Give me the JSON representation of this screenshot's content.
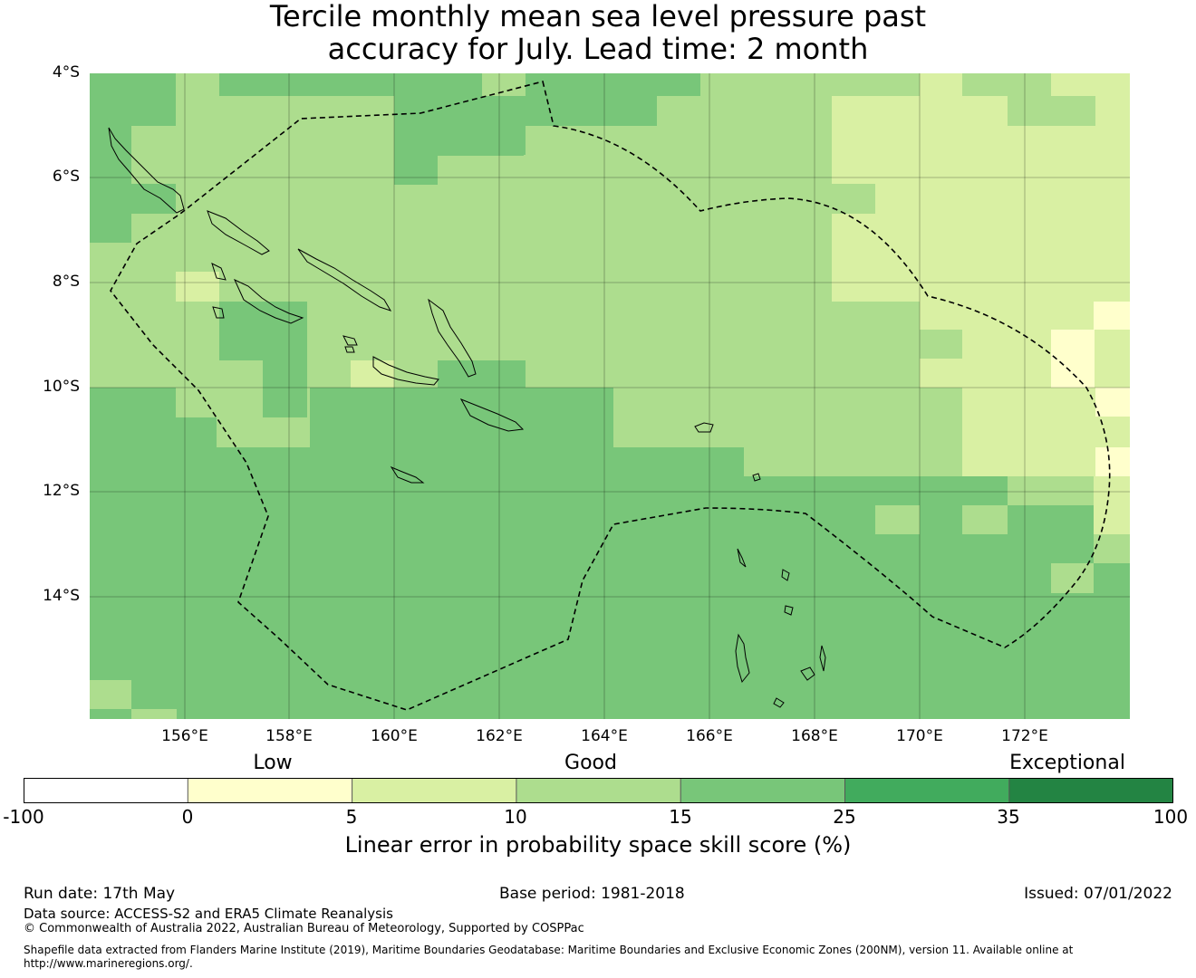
{
  "title": {
    "line1": "Tercile monthly mean sea level pressure past",
    "line2": "accuracy for July. Lead time: 2 month"
  },
  "map": {
    "lat_labels": [
      "4°S",
      "6°S",
      "8°S",
      "10°S",
      "12°S",
      "14°S"
    ],
    "lon_labels": [
      "156°E",
      "158°E",
      "160°E",
      "162°E",
      "164°E",
      "166°E",
      "168°E",
      "170°E",
      "172°E"
    ],
    "extent": {
      "lon_min": 154.2,
      "lon_max": 174.0,
      "lat_top": -4.0,
      "lat_bottom": -16.3
    },
    "colors": {
      "yellow_pale": "#ffffcc",
      "light_yellow_green": "#d9f0a3",
      "light_green": "#addd8e",
      "medium_green": "#78c679",
      "green": "#41ab5d",
      "dark_green": "#238443"
    }
  },
  "colorbar": {
    "category_labels": {
      "low": "Low",
      "good": "Good",
      "exceptional": "Exceptional"
    },
    "ticks": [
      "-100",
      "0",
      "5",
      "10",
      "15",
      "25",
      "35",
      "100"
    ],
    "segment_colors": [
      "#ffffff",
      "#ffffcc",
      "#d9f0a3",
      "#addd8e",
      "#78c679",
      "#41ab5d",
      "#238443"
    ],
    "label": "Linear error in probability space skill score (%)"
  },
  "footer": {
    "run_date": "Run date: 17th May",
    "base_period": "Base period: 1981-2018",
    "issued": "Issued: 07/01/2022",
    "data_source": "Data source: ACCESS-S2 and ERA5 Climate Reanalysis",
    "copyright": "© Commonwealth of Australia 2022, Australian Bureau of Meteorology, Supported by COSPPac",
    "shapefile_line1": "Shapefile data extracted from Flanders Marine Institute (2019), Maritime Boundaries Geodatabase: Maritime Boundaries and Exclusive Economic Zones (200NM), version 11. Available online at",
    "shapefile_line2": "http://www.marineregions.org/."
  }
}
